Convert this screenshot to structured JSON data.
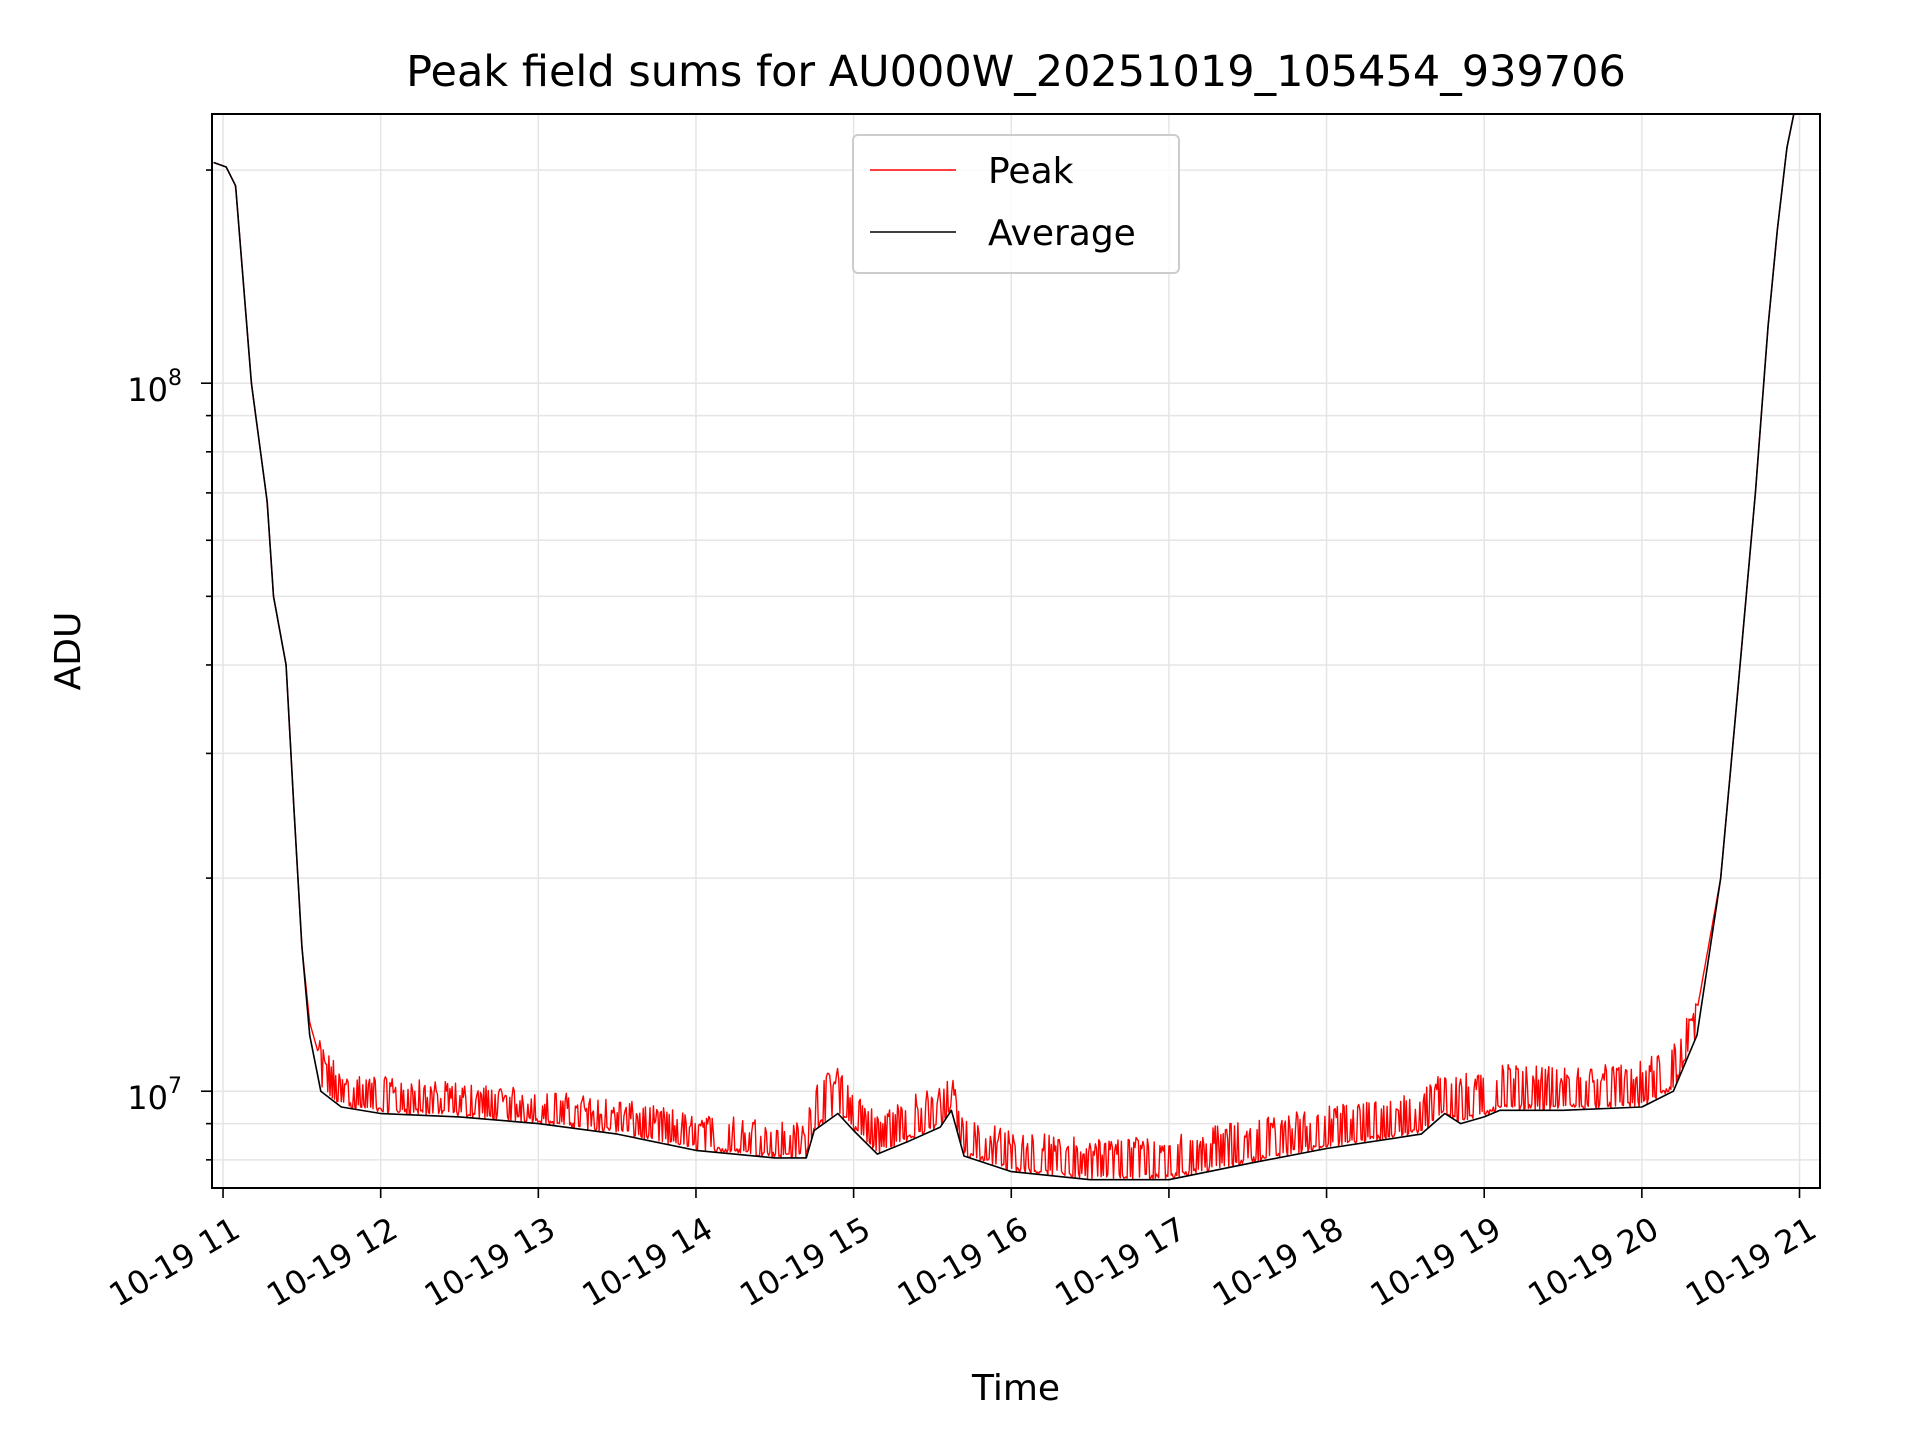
{
  "chart_data": {
    "type": "line",
    "title": "Peak field sums for AU000W_20251019_105454_939706",
    "xlabel": "Time",
    "ylabel": "ADU",
    "yscale": "log",
    "ylim": [
      7300000,
      240000000
    ],
    "xlim": [
      10.93,
      21.13
    ],
    "x_ticks": [
      {
        "value": 11,
        "label": "10-19 11"
      },
      {
        "value": 12,
        "label": "10-19 12"
      },
      {
        "value": 13,
        "label": "10-19 13"
      },
      {
        "value": 14,
        "label": "10-19 14"
      },
      {
        "value": 15,
        "label": "10-19 15"
      },
      {
        "value": 16,
        "label": "10-19 16"
      },
      {
        "value": 17,
        "label": "10-19 17"
      },
      {
        "value": 18,
        "label": "10-19 18"
      },
      {
        "value": 19,
        "label": "10-19 19"
      },
      {
        "value": 20,
        "label": "10-19 20"
      },
      {
        "value": 21,
        "label": "10-19 21"
      }
    ],
    "y_ticks_major": [
      {
        "value": 10000000,
        "base": "10",
        "exp": "7"
      },
      {
        "value": 100000000,
        "base": "10",
        "exp": "8"
      }
    ],
    "y_ticks_minor": [
      8000000,
      9000000,
      20000000,
      30000000,
      40000000,
      50000000,
      60000000,
      70000000,
      80000000,
      90000000,
      200000000
    ],
    "grid": true,
    "legend": {
      "position": "top-center",
      "entries": [
        "Peak",
        "Average"
      ]
    },
    "series": [
      {
        "name": "Peak",
        "color": "#ff0000",
        "noise": "spiky-upward",
        "points": [
          [
            10.94,
            205000000
          ],
          [
            11.02,
            202000000
          ],
          [
            11.08,
            190000000
          ],
          [
            11.18,
            100000000
          ],
          [
            11.28,
            68000000
          ],
          [
            11.32,
            50000000
          ],
          [
            11.4,
            40000000
          ],
          [
            11.45,
            25000000
          ],
          [
            11.5,
            16000000
          ],
          [
            11.55,
            12500000
          ],
          [
            11.62,
            11000000
          ],
          [
            11.75,
            10200000
          ],
          [
            12.0,
            9900000
          ],
          [
            12.5,
            9700000
          ],
          [
            13.0,
            9500000
          ],
          [
            13.5,
            9200000
          ],
          [
            14.0,
            8800000
          ],
          [
            14.5,
            8600000
          ],
          [
            14.7,
            8500000
          ],
          [
            14.75,
            9800000
          ],
          [
            14.9,
            10200000
          ],
          [
            15.0,
            9600000
          ],
          [
            15.15,
            8800000
          ],
          [
            15.35,
            9300000
          ],
          [
            15.55,
            9600000
          ],
          [
            15.62,
            10000000
          ],
          [
            15.7,
            8700000
          ],
          [
            16.0,
            8300000
          ],
          [
            16.5,
            8100000
          ],
          [
            17.0,
            8200000
          ],
          [
            17.5,
            8600000
          ],
          [
            18.0,
            9000000
          ],
          [
            18.6,
            9400000
          ],
          [
            18.75,
            10200000
          ],
          [
            19.0,
            10000000
          ],
          [
            19.1,
            10300000
          ],
          [
            19.5,
            10200000
          ],
          [
            20.0,
            10400000
          ],
          [
            20.2,
            11000000
          ],
          [
            20.35,
            13000000
          ],
          [
            20.5,
            20000000
          ],
          [
            20.6,
            35000000
          ],
          [
            20.72,
            70000000
          ],
          [
            20.8,
            120000000
          ],
          [
            20.86,
            165000000
          ],
          [
            20.92,
            215000000
          ],
          [
            20.98,
            250000000
          ]
        ]
      },
      {
        "name": "Average",
        "color": "#000000",
        "points": [
          [
            10.94,
            205000000
          ],
          [
            11.02,
            202000000
          ],
          [
            11.08,
            190000000
          ],
          [
            11.18,
            100000000
          ],
          [
            11.28,
            68000000
          ],
          [
            11.32,
            50000000
          ],
          [
            11.4,
            40000000
          ],
          [
            11.45,
            25000000
          ],
          [
            11.5,
            16000000
          ],
          [
            11.55,
            12000000
          ],
          [
            11.62,
            10000000
          ],
          [
            11.75,
            9500000
          ],
          [
            12.0,
            9300000
          ],
          [
            12.5,
            9200000
          ],
          [
            13.0,
            9000000
          ],
          [
            13.5,
            8700000
          ],
          [
            14.0,
            8250000
          ],
          [
            14.5,
            8050000
          ],
          [
            14.7,
            8050000
          ],
          [
            14.75,
            8800000
          ],
          [
            14.9,
            9300000
          ],
          [
            15.0,
            8800000
          ],
          [
            15.15,
            8150000
          ],
          [
            15.35,
            8500000
          ],
          [
            15.55,
            8900000
          ],
          [
            15.62,
            9400000
          ],
          [
            15.7,
            8100000
          ],
          [
            16.0,
            7700000
          ],
          [
            16.5,
            7500000
          ],
          [
            17.0,
            7500000
          ],
          [
            17.5,
            7900000
          ],
          [
            18.0,
            8300000
          ],
          [
            18.6,
            8700000
          ],
          [
            18.75,
            9300000
          ],
          [
            18.85,
            9000000
          ],
          [
            19.0,
            9200000
          ],
          [
            19.1,
            9400000
          ],
          [
            19.5,
            9400000
          ],
          [
            20.0,
            9500000
          ],
          [
            20.2,
            10000000
          ],
          [
            20.35,
            12000000
          ],
          [
            20.5,
            20000000
          ],
          [
            20.6,
            35000000
          ],
          [
            20.72,
            70000000
          ],
          [
            20.8,
            120000000
          ],
          [
            20.86,
            165000000
          ],
          [
            20.92,
            215000000
          ],
          [
            20.98,
            250000000
          ]
        ]
      }
    ]
  }
}
